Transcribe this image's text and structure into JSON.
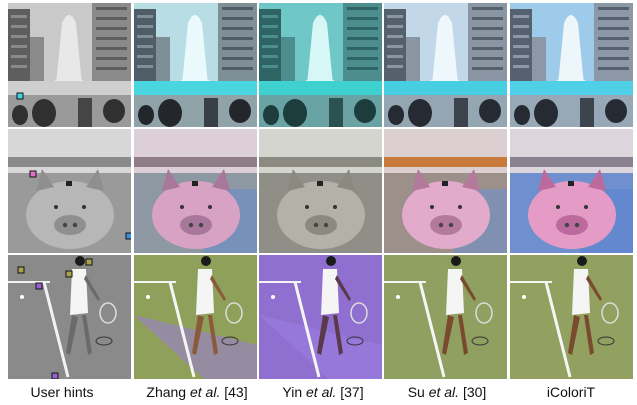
{
  "methods": [
    {
      "id": "hints",
      "caption_pre": "User hints",
      "caption_it": "",
      "caption_post": ""
    },
    {
      "id": "zhang",
      "caption_pre": "Zhang ",
      "caption_it": "et al.",
      "caption_post": " [43]"
    },
    {
      "id": "yin",
      "caption_pre": "Yin ",
      "caption_it": "et al.",
      "caption_post": " [37]"
    },
    {
      "id": "su",
      "caption_pre": "Su ",
      "caption_it": "et al.",
      "caption_post": " [30]"
    },
    {
      "id": "icoloritit",
      "caption_pre": "iColoriT",
      "caption_it": "",
      "caption_post": ""
    }
  ],
  "rows": [
    {
      "id": "fountain",
      "subject": "fountain-plaza"
    },
    {
      "id": "piggy",
      "subject": "piggy-bank"
    },
    {
      "id": "tennis",
      "subject": "tennis-player"
    }
  ],
  "colors": {
    "hint_cyan": "#3fd6e0",
    "hint_pink": "#e070c8",
    "hint_blue": "#3f8fe0",
    "hint_olive": "#a8a24a",
    "hint_purple": "#9a5fd0"
  }
}
